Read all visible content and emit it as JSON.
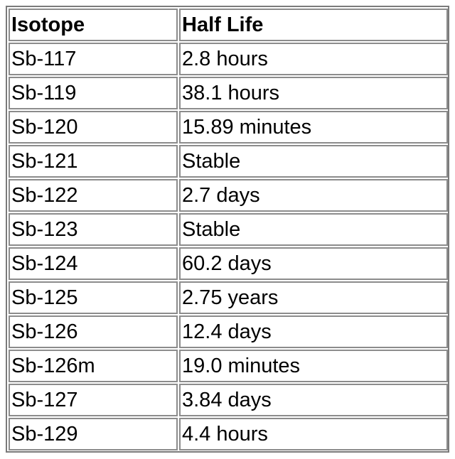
{
  "table": {
    "headers": [
      "Isotope",
      "Half Life"
    ],
    "rows": [
      [
        "Sb-117",
        "2.8 hours"
      ],
      [
        "Sb-119",
        "38.1 hours"
      ],
      [
        "Sb-120",
        "15.89 minutes"
      ],
      [
        "Sb-121",
        "Stable"
      ],
      [
        "Sb-122",
        "2.7 days"
      ],
      [
        "Sb-123",
        "Stable"
      ],
      [
        "Sb-124",
        "60.2 days"
      ],
      [
        "Sb-125",
        "2.75 years"
      ],
      [
        "Sb-126",
        "12.4 days"
      ],
      [
        "Sb-126m",
        "19.0 minutes"
      ],
      [
        "Sb-127",
        "3.84 days"
      ],
      [
        "Sb-129",
        "4.4 hours"
      ]
    ]
  }
}
